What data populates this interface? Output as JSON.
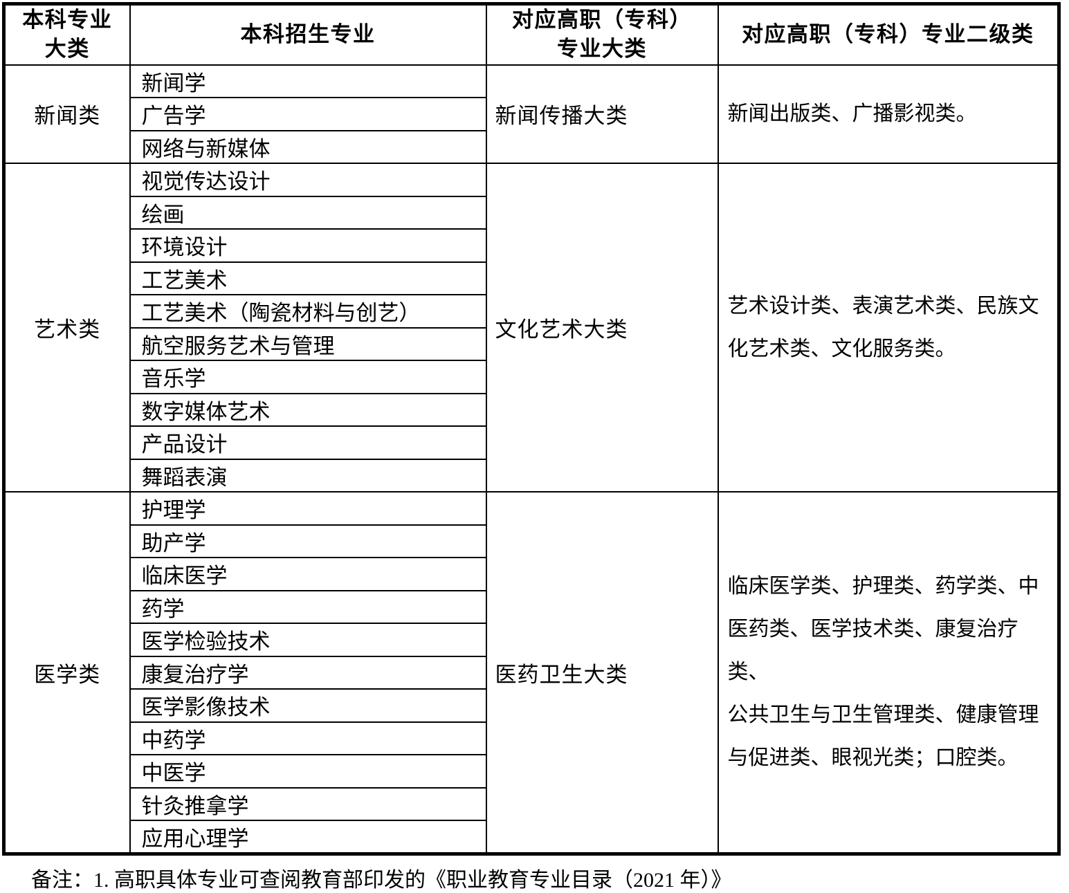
{
  "page": {
    "background": "#ffffff",
    "border_color": "#000000",
    "text_color": "#000000"
  },
  "table": {
    "headers": [
      "本科专业\n大类",
      "本科招生专业",
      "对应高职（专科）\n专业大类",
      "对应高职（专科）专业二级类"
    ],
    "groups": [
      {
        "category": "新闻类",
        "majors": [
          "新闻学",
          "广告学",
          "网络与新媒体"
        ],
        "vocational_category": "新闻传播大类",
        "vocational_subcategories": "新闻出版类、广播影视类。"
      },
      {
        "category": "艺术类",
        "majors": [
          "视觉传达设计",
          "绘画",
          "环境设计",
          "工艺美术",
          "工艺美术（陶瓷材料与创艺）",
          "航空服务艺术与管理",
          "音乐学",
          "数字媒体艺术",
          "产品设计",
          "舞蹈表演"
        ],
        "vocational_category": "文化艺术大类",
        "vocational_subcategories": "艺术设计类、表演艺术类、民族文\n化艺术类、文化服务类。"
      },
      {
        "category": "医学类",
        "majors": [
          "护理学",
          "助产学",
          "临床医学",
          "药学",
          "医学检验技术",
          "康复治疗学",
          "医学影像技术",
          "中药学",
          "中医学",
          "针灸推拿学",
          "应用心理学"
        ],
        "vocational_category": "医药卫生大类",
        "vocational_subcategories": "临床医学类、护理类、药学类、中\n医药类、医学技术类、康复治疗类、\n公共卫生与卫生管理类、健康管理\n与促进类、眼视光类；口腔类。"
      }
    ]
  },
  "note": "备注：1. 高职具体专业可查阅教育部印发的《职业教育专业目录（2021 年）》"
}
